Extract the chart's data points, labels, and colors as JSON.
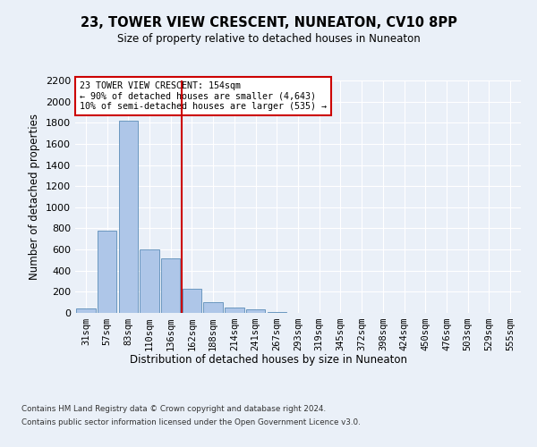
{
  "title": "23, TOWER VIEW CRESCENT, NUNEATON, CV10 8PP",
  "subtitle": "Size of property relative to detached houses in Nuneaton",
  "xlabel": "Distribution of detached houses by size in Nuneaton",
  "ylabel": "Number of detached properties",
  "bar_labels": [
    "31sqm",
    "57sqm",
    "83sqm",
    "110sqm",
    "136sqm",
    "162sqm",
    "188sqm",
    "214sqm",
    "241sqm",
    "267sqm",
    "293sqm",
    "319sqm",
    "345sqm",
    "372sqm",
    "398sqm",
    "424sqm",
    "450sqm",
    "476sqm",
    "503sqm",
    "529sqm",
    "555sqm"
  ],
  "bar_values": [
    45,
    775,
    1820,
    600,
    515,
    230,
    100,
    50,
    30,
    10,
    0,
    0,
    0,
    0,
    0,
    0,
    0,
    0,
    0,
    0,
    0
  ],
  "bar_color": "#aec6e8",
  "bar_edge_color": "#5b8db8",
  "vline_x": 4.5,
  "vline_color": "#cc0000",
  "annotation_box_color": "#cc0000",
  "annotation_text_line1": "23 TOWER VIEW CRESCENT: 154sqm",
  "annotation_text_line2": "← 90% of detached houses are smaller (4,643)",
  "annotation_text_line3": "10% of semi-detached houses are larger (535) →",
  "ylim": [
    0,
    2200
  ],
  "yticks": [
    0,
    200,
    400,
    600,
    800,
    1000,
    1200,
    1400,
    1600,
    1800,
    2000,
    2200
  ],
  "footnote1": "Contains HM Land Registry data © Crown copyright and database right 2024.",
  "footnote2": "Contains public sector information licensed under the Open Government Licence v3.0.",
  "bg_color": "#eaf0f8",
  "plot_bg_color": "#eaf0f8",
  "grid_color": "#ffffff"
}
